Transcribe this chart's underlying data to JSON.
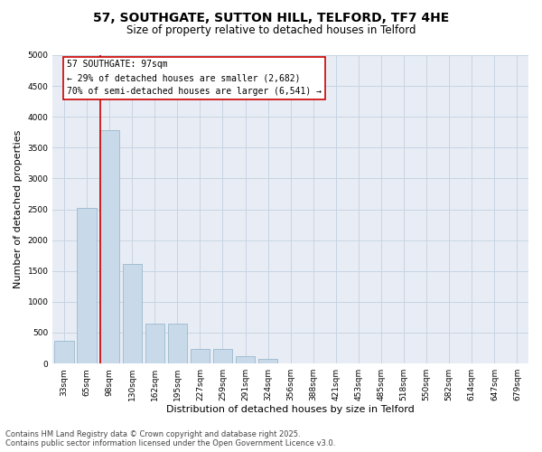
{
  "title_line1": "57, SOUTHGATE, SUTTON HILL, TELFORD, TF7 4HE",
  "title_line2": "Size of property relative to detached houses in Telford",
  "xlabel": "Distribution of detached houses by size in Telford",
  "ylabel": "Number of detached properties",
  "categories": [
    "33sqm",
    "65sqm",
    "98sqm",
    "130sqm",
    "162sqm",
    "195sqm",
    "227sqm",
    "259sqm",
    "291sqm",
    "324sqm",
    "356sqm",
    "388sqm",
    "421sqm",
    "453sqm",
    "485sqm",
    "518sqm",
    "550sqm",
    "582sqm",
    "614sqm",
    "647sqm",
    "679sqm"
  ],
  "values": [
    370,
    2520,
    3780,
    1620,
    640,
    640,
    230,
    230,
    120,
    75,
    0,
    0,
    0,
    0,
    0,
    0,
    0,
    0,
    0,
    0,
    0
  ],
  "bar_color": "#c8daea",
  "bar_edge_color": "#9ab8ce",
  "vline_position": 1.6,
  "vline_color": "#cc0000",
  "annotation_text": "57 SOUTHGATE: 97sqm\n← 29% of detached houses are smaller (2,682)\n70% of semi-detached houses are larger (6,541) →",
  "box_edge_color": "#cc0000",
  "ylim": [
    0,
    5000
  ],
  "yticks": [
    0,
    500,
    1000,
    1500,
    2000,
    2500,
    3000,
    3500,
    4000,
    4500,
    5000
  ],
  "grid_color": "#c8d4e2",
  "bg_color": "#e8edf5",
  "footer_text": "Contains HM Land Registry data © Crown copyright and database right 2025.\nContains public sector information licensed under the Open Government Licence v3.0.",
  "title_fontsize": 10,
  "subtitle_fontsize": 8.5,
  "tick_fontsize": 6.5,
  "ylabel_fontsize": 8,
  "xlabel_fontsize": 8,
  "annotation_fontsize": 7,
  "footer_fontsize": 6
}
